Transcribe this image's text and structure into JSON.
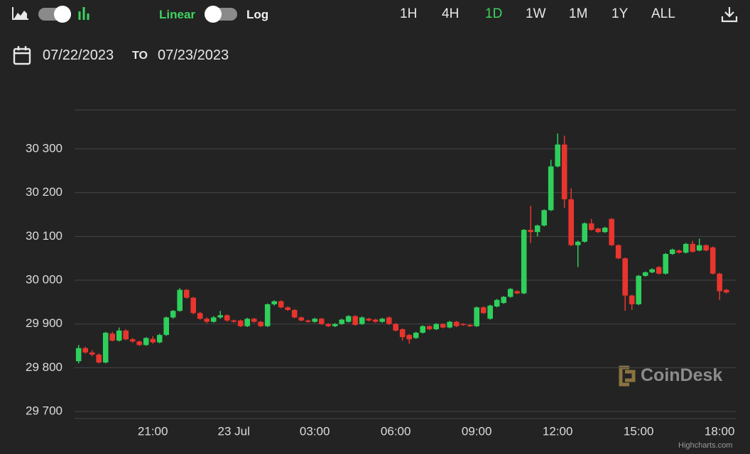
{
  "ui": {
    "scale_linear": "Linear",
    "scale_log": "Log",
    "ranges": [
      "1H",
      "4H",
      "1D",
      "1W",
      "1M",
      "1Y",
      "ALL"
    ],
    "active_range": "1D",
    "date_from": "07/22/2023",
    "date_separator": "TO",
    "date_to": "07/23/2023",
    "watermark": "CoinDesk",
    "credit": "Highcharts.com"
  },
  "chart_data": {
    "type": "candlestick",
    "up_color": "#2fcf5b",
    "down_color": "#e8352e",
    "grid": true,
    "xlim": [
      "2023-07-22 18:06",
      "2023-07-23 18:36"
    ],
    "xticks": [
      {
        "value": "2023-07-22 21:00",
        "label": "21:00"
      },
      {
        "value": "2023-07-23 00:00",
        "label": "23 Jul"
      },
      {
        "value": "2023-07-23 03:00",
        "label": "03:00"
      },
      {
        "value": "2023-07-23 06:00",
        "label": "06:00"
      },
      {
        "value": "2023-07-23 09:00",
        "label": "09:00"
      },
      {
        "value": "2023-07-23 12:00",
        "label": "12:00"
      },
      {
        "value": "2023-07-23 15:00",
        "label": "15:00"
      },
      {
        "value": "2023-07-23 18:00",
        "label": "18:00"
      }
    ],
    "ylim": [
      29684,
      30389
    ],
    "yticks": [
      {
        "value": 29700,
        "label": "29 700"
      },
      {
        "value": 29800,
        "label": "29 800"
      },
      {
        "value": 29900,
        "label": "29 900"
      },
      {
        "value": 30000,
        "label": "30 000"
      },
      {
        "value": 30100,
        "label": "30 100"
      },
      {
        "value": 30200,
        "label": "30 200"
      },
      {
        "value": 30300,
        "label": "30 300"
      }
    ],
    "x": [
      "2023-07-22 18:15",
      "2023-07-22 18:30",
      "2023-07-22 18:45",
      "2023-07-22 19:00",
      "2023-07-22 19:15",
      "2023-07-22 19:30",
      "2023-07-22 19:45",
      "2023-07-22 20:00",
      "2023-07-22 20:15",
      "2023-07-22 20:30",
      "2023-07-22 20:45",
      "2023-07-22 21:00",
      "2023-07-22 21:15",
      "2023-07-22 21:30",
      "2023-07-22 21:45",
      "2023-07-22 22:00",
      "2023-07-22 22:15",
      "2023-07-22 22:30",
      "2023-07-22 22:45",
      "2023-07-22 23:00",
      "2023-07-22 23:15",
      "2023-07-22 23:30",
      "2023-07-22 23:45",
      "2023-07-23 00:00",
      "2023-07-23 00:15",
      "2023-07-23 00:30",
      "2023-07-23 00:45",
      "2023-07-23 01:00",
      "2023-07-23 01:15",
      "2023-07-23 01:30",
      "2023-07-23 01:45",
      "2023-07-23 02:00",
      "2023-07-23 02:15",
      "2023-07-23 02:30",
      "2023-07-23 02:45",
      "2023-07-23 03:00",
      "2023-07-23 03:15",
      "2023-07-23 03:30",
      "2023-07-23 03:45",
      "2023-07-23 04:00",
      "2023-07-23 04:15",
      "2023-07-23 04:30",
      "2023-07-23 04:45",
      "2023-07-23 05:00",
      "2023-07-23 05:15",
      "2023-07-23 05:30",
      "2023-07-23 05:45",
      "2023-07-23 06:00",
      "2023-07-23 06:15",
      "2023-07-23 06:30",
      "2023-07-23 06:45",
      "2023-07-23 07:00",
      "2023-07-23 07:15",
      "2023-07-23 07:30",
      "2023-07-23 07:45",
      "2023-07-23 08:00",
      "2023-07-23 08:15",
      "2023-07-23 08:30",
      "2023-07-23 08:45",
      "2023-07-23 09:00",
      "2023-07-23 09:15",
      "2023-07-23 09:30",
      "2023-07-23 09:45",
      "2023-07-23 10:00",
      "2023-07-23 10:15",
      "2023-07-23 10:30",
      "2023-07-23 10:45",
      "2023-07-23 11:00",
      "2023-07-23 11:15",
      "2023-07-23 11:30",
      "2023-07-23 11:45",
      "2023-07-23 12:00",
      "2023-07-23 12:15",
      "2023-07-23 12:30",
      "2023-07-23 12:45",
      "2023-07-23 13:00",
      "2023-07-23 13:15",
      "2023-07-23 13:30",
      "2023-07-23 13:45",
      "2023-07-23 14:00",
      "2023-07-23 14:15",
      "2023-07-23 14:30",
      "2023-07-23 14:45",
      "2023-07-23 15:00",
      "2023-07-23 15:15",
      "2023-07-23 15:30",
      "2023-07-23 15:45",
      "2023-07-23 16:00",
      "2023-07-23 16:15",
      "2023-07-23 16:30",
      "2023-07-23 16:45",
      "2023-07-23 17:00",
      "2023-07-23 17:15",
      "2023-07-23 17:30",
      "2023-07-23 17:45",
      "2023-07-23 18:00",
      "2023-07-23 18:15"
    ],
    "open": [
      29815,
      29845,
      29835,
      29830,
      29812,
      29878,
      29862,
      29885,
      29865,
      29860,
      29852,
      29866,
      29858,
      29875,
      29915,
      29930,
      29978,
      29960,
      29925,
      29912,
      29905,
      29915,
      29920,
      29908,
      29908,
      29895,
      29912,
      29905,
      29895,
      29945,
      29952,
      29938,
      29932,
      29915,
      29908,
      29905,
      29912,
      29900,
      29895,
      29900,
      29905,
      29918,
      29900,
      29912,
      29910,
      29905,
      29915,
      29900,
      29888,
      29875,
      29868,
      29880,
      29895,
      29888,
      29900,
      29892,
      29905,
      29900,
      29898,
      29895,
      29938,
      29912,
      29940,
      29948,
      29962,
      29975,
      29970,
      30115,
      30110,
      30125,
      30160,
      30260,
      30310,
      30185,
      30080,
      30088,
      30130,
      30118,
      30110,
      30140,
      30080,
      30050,
      29965,
      29945,
      30010,
      30018,
      30030,
      30015,
      30060,
      30068,
      30063,
      30083,
      30068,
      30080,
      30075,
      30015,
      29978
    ],
    "high": [
      29852,
      29848,
      29840,
      29833,
      29882,
      29882,
      29892,
      29888,
      29868,
      29862,
      29870,
      29872,
      29878,
      29917,
      29932,
      29982,
      29980,
      29962,
      29928,
      29915,
      29918,
      29930,
      29922,
      29910,
      29910,
      29914,
      29914,
      29907,
      29947,
      29954,
      29954,
      29940,
      29934,
      29917,
      29910,
      29914,
      29914,
      29902,
      29902,
      29912,
      29920,
      29920,
      29917,
      29914,
      29912,
      29914,
      29917,
      29902,
      29890,
      29877,
      29882,
      29897,
      29897,
      29902,
      29902,
      29907,
      29907,
      29902,
      29900,
      29940,
      29940,
      29944,
      29957,
      29964,
      29982,
      29977,
      30117,
      30170,
      30127,
      30162,
      30275,
      30335,
      30330,
      30210,
      30090,
      30132,
      30140,
      30120,
      30122,
      30142,
      30082,
      30052,
      29967,
      30012,
      30020,
      30027,
      30032,
      30062,
      30072,
      30070,
      30085,
      30090,
      30095,
      30082,
      30077,
      30017,
      29980
    ],
    "low": [
      29810,
      29832,
      29826,
      29810,
      29810,
      29860,
      29860,
      29863,
      29857,
      29850,
      29850,
      29855,
      29856,
      29873,
      29912,
      29928,
      29958,
      29922,
      29910,
      29902,
      29903,
      29912,
      29905,
      29903,
      29893,
      29893,
      29903,
      29893,
      29893,
      29942,
      29936,
      29930,
      29913,
      29906,
      29903,
      29903,
      29898,
      29893,
      29893,
      29898,
      29903,
      29896,
      29898,
      29906,
      29903,
      29903,
      29898,
      29883,
      29862,
      29855,
      29866,
      29878,
      29886,
      29886,
      29890,
      29890,
      29893,
      29896,
      29893,
      29893,
      29923,
      29910,
      29938,
      29946,
      29960,
      29968,
      29968,
      30085,
      30100,
      30123,
      30158,
      30258,
      30165,
      30078,
      30030,
      30086,
      30113,
      30108,
      30108,
      30078,
      30048,
      29930,
      29932,
      29943,
      30008,
      30016,
      30013,
      30013,
      30058,
      30061,
      30061,
      30063,
      30066,
      30066,
      30013,
      29955,
      29970
    ],
    "close": [
      29845,
      29835,
      29830,
      29812,
      29880,
      29862,
      29885,
      29865,
      29860,
      29852,
      29868,
      29858,
      29875,
      29915,
      29930,
      29978,
      29960,
      29925,
      29912,
      29905,
      29915,
      29920,
      29908,
      29905,
      29895,
      29912,
      29905,
      29895,
      29945,
      29952,
      29938,
      29932,
      29915,
      29908,
      29905,
      29912,
      29900,
      29895,
      29900,
      29910,
      29918,
      29898,
      29915,
      29908,
      29905,
      29912,
      29900,
      29885,
      29870,
      29865,
      29880,
      29895,
      29888,
      29900,
      29892,
      29905,
      29895,
      29898,
      29895,
      29938,
      29925,
      29942,
      29955,
      29962,
      29980,
      29970,
      30115,
      30110,
      30125,
      30160,
      30260,
      30310,
      30185,
      30080,
      30088,
      30130,
      30115,
      30110,
      30120,
      30080,
      30050,
      29965,
      29945,
      30010,
      30018,
      30025,
      30015,
      30060,
      30070,
      30063,
      30083,
      30065,
      30080,
      30068,
      30015,
      29975,
      29972
    ]
  }
}
